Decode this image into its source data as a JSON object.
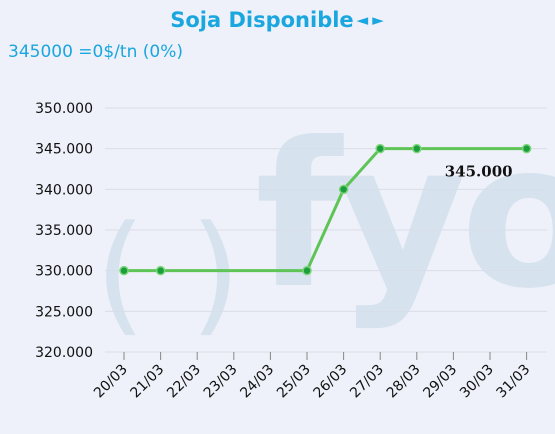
{
  "header": {
    "title": "Soja Disponible",
    "prev_arrow": "◄",
    "next_arrow": "►",
    "subtitle": "345000 =0$/tn (0%)"
  },
  "watermark": {
    "left_paren": "(",
    "right_paren": ")",
    "text": "fyo"
  },
  "colors": {
    "accent": "#1aa6df",
    "line": "#5ec455",
    "marker": "#1b9e3e",
    "grid": "#d9dde8",
    "watermark": "#d6e2ee"
  },
  "chart_data": {
    "type": "line",
    "categories": [
      "20/03",
      "21/03",
      "22/03",
      "23/03",
      "24/03",
      "25/03",
      "26/03",
      "27/03",
      "28/03",
      "29/03",
      "30/03",
      "31/03"
    ],
    "points": [
      {
        "x": "20/03",
        "y": 330000
      },
      {
        "x": "21/03",
        "y": 330000
      },
      {
        "x": "25/03",
        "y": 330000
      },
      {
        "x": "26/03",
        "y": 340000
      },
      {
        "x": "27/03",
        "y": 345000
      },
      {
        "x": "28/03",
        "y": 345000
      },
      {
        "x": "31/03",
        "y": 345000
      }
    ],
    "ylim": [
      320000,
      350000
    ],
    "yticks": [
      {
        "value": 350000,
        "label": "350.000"
      },
      {
        "value": 345000,
        "label": "345.000"
      },
      {
        "value": 340000,
        "label": "340.000"
      },
      {
        "value": 335000,
        "label": "335.000"
      },
      {
        "value": 330000,
        "label": "330.000"
      },
      {
        "value": 325000,
        "label": "325.000"
      },
      {
        "value": 320000,
        "label": "320.000"
      }
    ],
    "grid": true,
    "last_value_label": "345.000"
  }
}
